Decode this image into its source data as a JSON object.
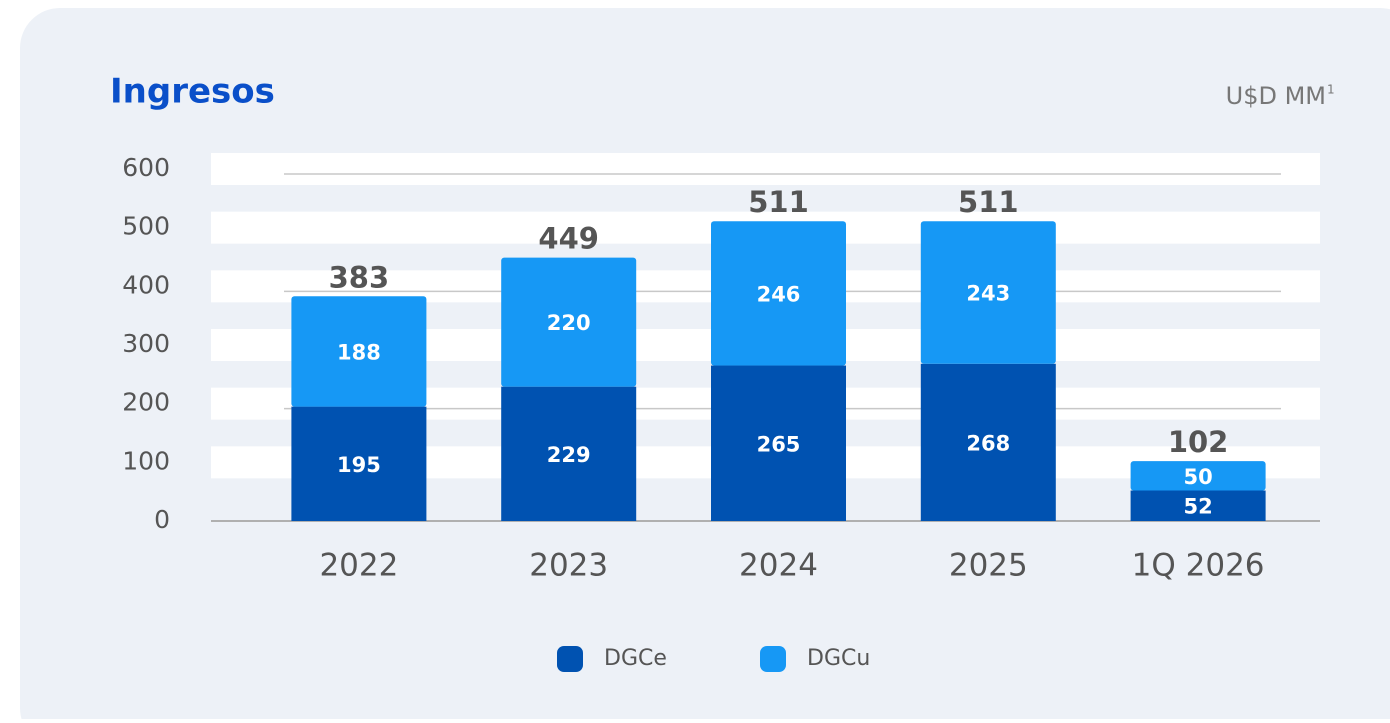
{
  "chart_data": {
    "type": "stacked_bar",
    "title": "Ingresos",
    "unit": "U$D MM",
    "unit_note": "1",
    "categories": [
      "2022",
      "2023",
      "2024",
      "2025",
      "1Q 2026"
    ],
    "series": [
      {
        "name": "DGCe",
        "color": "#0052b1",
        "values": [
          195,
          229,
          265,
          268,
          52
        ]
      },
      {
        "name": "DGCu",
        "color": "#1698f5",
        "values": [
          188,
          220,
          246,
          243,
          50
        ]
      }
    ],
    "totals": [
      383,
      449,
      511,
      511,
      102
    ],
    "ylim": [
      0,
      600
    ],
    "yticks": [
      0,
      100,
      200,
      300,
      400,
      500,
      600
    ],
    "grid": true
  }
}
